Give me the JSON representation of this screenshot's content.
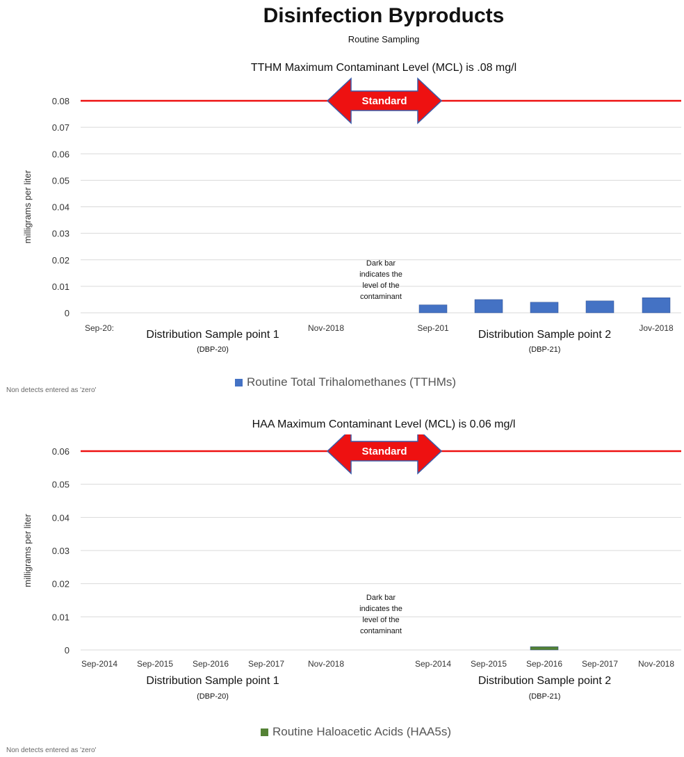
{
  "page": {
    "title": "Disinfection Byproducts",
    "subtitle": "Routine Sampling"
  },
  "chart_data": [
    {
      "type": "bar",
      "title": "TTHM Maximum Contaminant Level (MCL) is .08 mg/l",
      "ylabel": "milligrams per liter",
      "ylim": [
        0,
        0.08
      ],
      "yticks": [
        "0",
        "0.01",
        "0.02",
        "0.03",
        "0.04",
        "0.05",
        "0.06",
        "0.07",
        "0.08"
      ],
      "groups": [
        {
          "name": "Distribution Sample point 1",
          "sub": "(DBP-20)",
          "categories": [
            "Sep-20:",
            "",
            "",
            "",
            "Nov-2018"
          ],
          "values": [
            0,
            0,
            0,
            0,
            0
          ]
        },
        {
          "name": "Distribution Sample point 2",
          "sub": "(DBP-21)",
          "categories": [
            "Sep-201",
            "",
            "",
            "",
            "Jov-2018"
          ],
          "values": [
            0.003,
            0.005,
            0.004,
            0.0045,
            0.0057
          ]
        }
      ],
      "mcl": 0.08,
      "mcl_label": "Standard",
      "annotation": [
        "Dark bar",
        "indicates the",
        "level of the",
        "contaminant"
      ],
      "legend": "Routine Total Trihalomethanes (TTHMs)",
      "bar_color": "#4472c4",
      "line_color": "#ee1111",
      "note": "Non detects entered as 'zero'"
    },
    {
      "type": "bar",
      "title": "HAA Maximum Contaminant Level (MCL) is 0.06 mg/l",
      "ylabel": "milligrams per liter",
      "ylim": [
        0,
        0.06
      ],
      "yticks": [
        "0",
        "0.01",
        "0.02",
        "0.03",
        "0.04",
        "0.05",
        "0.06"
      ],
      "groups": [
        {
          "name": "Distribution Sample point 1",
          "sub": "(DBP-20)",
          "categories": [
            "Sep-2014",
            "Sep-2015",
            "Sep-2016",
            "Sep-2017",
            "Nov-2018"
          ],
          "values": [
            0,
            0,
            0,
            0,
            0
          ]
        },
        {
          "name": "Distribution Sample point 2",
          "sub": "(DBP-21)",
          "categories": [
            "Sep-2014",
            "Sep-2015",
            "Sep-2016",
            "Sep-2017",
            "Nov-2018"
          ],
          "values": [
            0,
            0,
            0.001,
            0,
            0
          ]
        }
      ],
      "mcl": 0.06,
      "mcl_label": "Standard",
      "annotation": [
        "Dark bar",
        "indicates the",
        "level of the",
        "contaminant"
      ],
      "legend": "Routine Haloacetic Acids (HAA5s)",
      "bar_color": "#548235",
      "line_color": "#ee1111",
      "note": "Non detects entered as 'zero'"
    }
  ]
}
